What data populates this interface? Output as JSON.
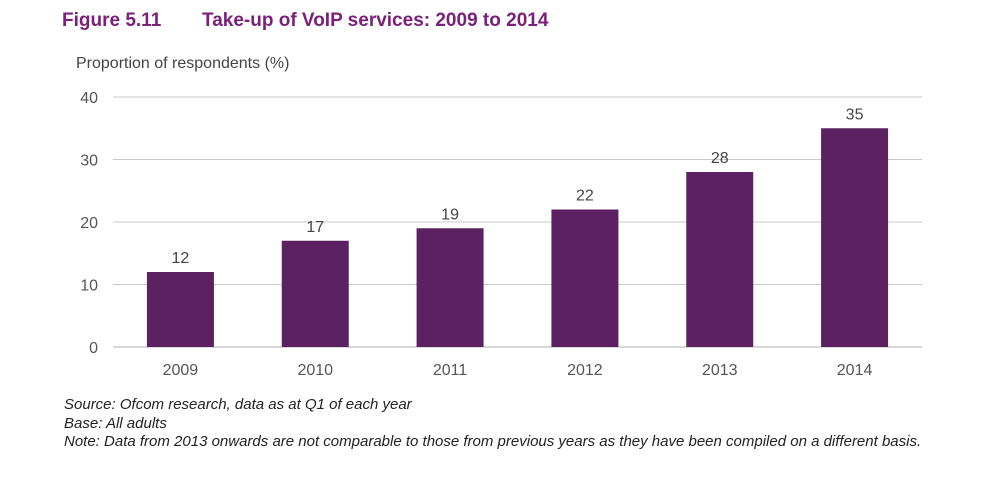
{
  "figure": {
    "number": "Figure 5.11",
    "title": "Take-up of VoIP services: 2009 to 2014"
  },
  "chart_data": {
    "type": "bar",
    "ylabel": "Proportion of respondents (%)",
    "xlabel": "",
    "categories": [
      "2009",
      "2010",
      "2011",
      "2012",
      "2013",
      "2014"
    ],
    "values": [
      12,
      17,
      19,
      22,
      28,
      35
    ],
    "data_labels": [
      "12",
      "17",
      "19",
      "22",
      "28",
      "35"
    ],
    "ylim": [
      0,
      40
    ],
    "yticks": [
      0,
      10,
      20,
      30,
      40
    ],
    "ytick_labels": [
      "0",
      "10",
      "20",
      "30",
      "40"
    ],
    "grid": true,
    "legend": "none",
    "bar_color": "#5c2161",
    "grid_color": "#c8c8c8"
  },
  "notes": {
    "source": "Source: Ofcom research, data as at Q1 of each year",
    "base": "Base: All adults",
    "note": "Note: Data from 2013 onwards are not comparable to those from previous years as they have been compiled on a different basis."
  }
}
